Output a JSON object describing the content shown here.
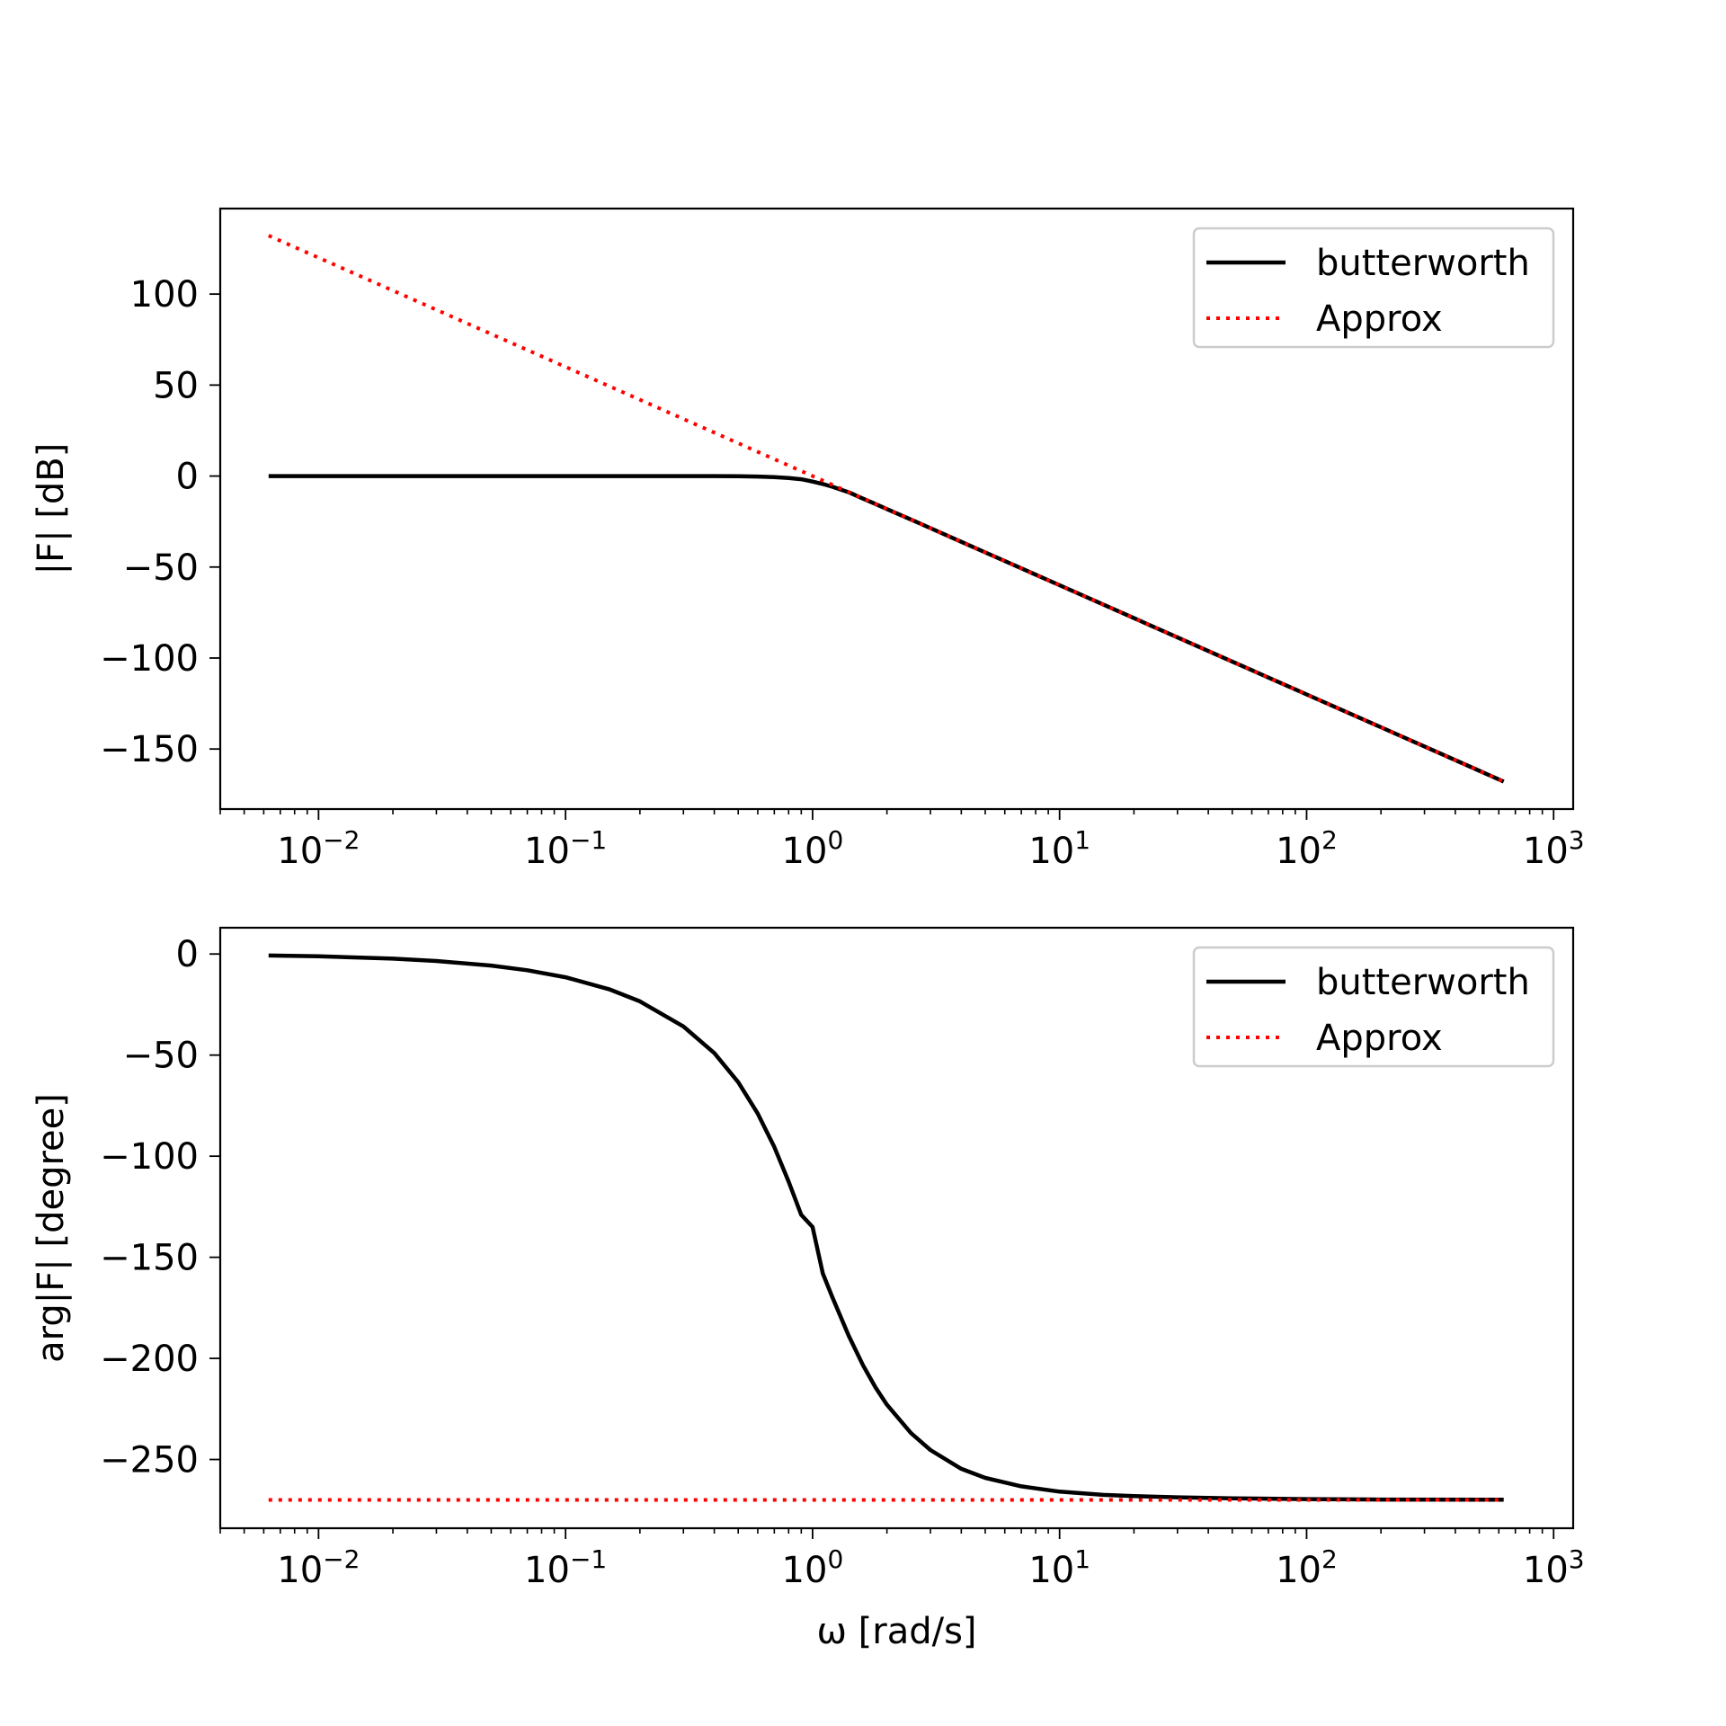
{
  "chart_data": [
    {
      "type": "line",
      "xscale": "log",
      "xlim": [
        0.004,
        1200
      ],
      "ylim": [
        -183,
        147
      ],
      "x_ticks": [
        {
          "base": "10",
          "exp": "−2"
        },
        {
          "base": "10",
          "exp": "−1"
        },
        {
          "base": "10",
          "exp": "0"
        },
        {
          "base": "10",
          "exp": "1"
        },
        {
          "base": "10",
          "exp": "2"
        },
        {
          "base": "10",
          "exp": "3"
        }
      ],
      "x_tick_values": [
        0.01,
        0.1,
        1,
        10,
        100,
        1000
      ],
      "y_ticks": [
        {
          "value": 100,
          "label": "100"
        },
        {
          "value": 50,
          "label": "50"
        },
        {
          "value": 0,
          "label": "0"
        },
        {
          "value": -50,
          "label": "−50"
        },
        {
          "value": -100,
          "label": "−100"
        },
        {
          "value": -150,
          "label": "−150"
        }
      ],
      "xlabel": "",
      "ylabel": "|F| [dB]",
      "legend": {
        "position": "top-right"
      },
      "series": [
        {
          "name": "butterworth",
          "color": "#000000",
          "style": "solid",
          "points": [
            [
              0.00628,
              0.0
            ],
            [
              0.01,
              0.0
            ],
            [
              0.03,
              0.0
            ],
            [
              0.1,
              0.0
            ],
            [
              0.2,
              0.0
            ],
            [
              0.3,
              0.0
            ],
            [
              0.4,
              -0.02
            ],
            [
              0.5,
              -0.09
            ],
            [
              0.6,
              -0.26
            ],
            [
              0.7,
              -0.59
            ],
            [
              0.8,
              -1.06
            ],
            [
              0.9,
              -1.75
            ],
            [
              1.0,
              -3.01
            ],
            [
              1.1,
              -4.38
            ],
            [
              1.2,
              -5.84
            ],
            [
              1.4,
              -8.91
            ],
            [
              1.6,
              -12.41
            ],
            [
              1.8,
              -15.4
            ],
            [
              2.0,
              -18.13
            ],
            [
              2.5,
              -23.9
            ],
            [
              3.0,
              -28.63
            ],
            [
              4.0,
              -36.13
            ],
            [
              5.0,
              -41.94
            ],
            [
              7.0,
              -50.71
            ],
            [
              10.0,
              -60.0
            ],
            [
              20.0,
              -78.06
            ],
            [
              50.0,
              -101.94
            ],
            [
              100.0,
              -120.0
            ],
            [
              200.0,
              -138.06
            ],
            [
              400.0,
              -156.12
            ],
            [
              628.0,
              -167.88
            ]
          ]
        },
        {
          "name": "Approx",
          "color": "#ff0000",
          "style": "dotted",
          "points": [
            [
              0.00628,
              132.12
            ],
            [
              628.0,
              -167.88
            ]
          ]
        }
      ]
    },
    {
      "type": "line",
      "xscale": "log",
      "xlim": [
        0.004,
        1200
      ],
      "ylim": [
        -284,
        13
      ],
      "x_ticks": [
        {
          "base": "10",
          "exp": "−2"
        },
        {
          "base": "10",
          "exp": "−1"
        },
        {
          "base": "10",
          "exp": "0"
        },
        {
          "base": "10",
          "exp": "1"
        },
        {
          "base": "10",
          "exp": "2"
        },
        {
          "base": "10",
          "exp": "3"
        }
      ],
      "x_tick_values": [
        0.01,
        0.1,
        1,
        10,
        100,
        1000
      ],
      "y_ticks": [
        {
          "value": 0,
          "label": "0"
        },
        {
          "value": -50,
          "label": "−50"
        },
        {
          "value": -100,
          "label": "−100"
        },
        {
          "value": -150,
          "label": "−150"
        },
        {
          "value": -200,
          "label": "−200"
        },
        {
          "value": -250,
          "label": "−250"
        }
      ],
      "xlabel": "ω [rad/s]",
      "ylabel": "arg|F| [degree]",
      "legend": {
        "position": "top-right"
      },
      "series": [
        {
          "name": "butterworth",
          "color": "#000000",
          "style": "solid",
          "points": [
            [
              0.00628,
              -0.72
            ],
            [
              0.01,
              -1.15
            ],
            [
              0.02,
              -2.29
            ],
            [
              0.03,
              -3.44
            ],
            [
              0.05,
              -5.73
            ],
            [
              0.07,
              -8.03
            ],
            [
              0.1,
              -11.5
            ],
            [
              0.15,
              -17.4
            ],
            [
              0.2,
              -23.4
            ],
            [
              0.3,
              -35.8
            ],
            [
              0.4,
              -49.0
            ],
            [
              0.5,
              -63.4
            ],
            [
              0.6,
              -78.9
            ],
            [
              0.7,
              -95.4
            ],
            [
              0.8,
              -112.6
            ],
            [
              0.9,
              -129.0
            ],
            [
              1.0,
              -135.0
            ],
            [
              1.1,
              -158.0
            ],
            [
              1.2,
              -169.5
            ],
            [
              1.4,
              -188.8
            ],
            [
              1.6,
              -203.4
            ],
            [
              1.8,
              -214.4
            ],
            [
              2.0,
              -222.9
            ],
            [
              2.5,
              -236.9
            ],
            [
              3.0,
              -245.3
            ],
            [
              4.0,
              -254.6
            ],
            [
              5.0,
              -259.1
            ],
            [
              7.0,
              -263.3
            ],
            [
              10.0,
              -265.9
            ],
            [
              15.0,
              -267.5
            ],
            [
              20.0,
              -268.1
            ],
            [
              30.0,
              -268.7
            ],
            [
              50.0,
              -269.2
            ],
            [
              100.0,
              -269.6
            ],
            [
              200.0,
              -269.8
            ],
            [
              628.0,
              -269.9
            ]
          ]
        },
        {
          "name": "Approx",
          "color": "#ff0000",
          "style": "dotted",
          "points": [
            [
              0.00628,
              -270.0
            ],
            [
              628.0,
              -270.0
            ]
          ]
        }
      ]
    }
  ]
}
